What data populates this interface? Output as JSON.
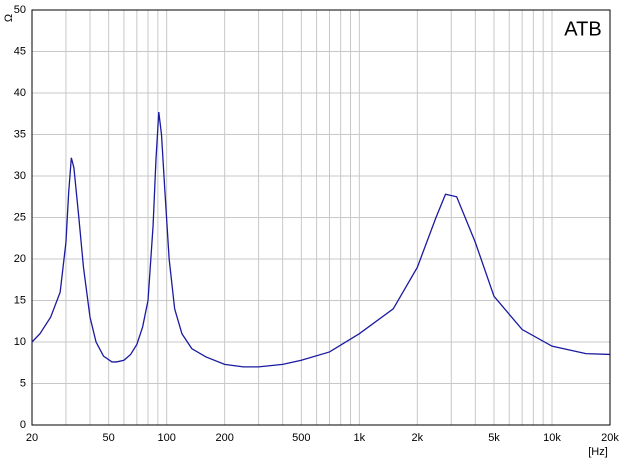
{
  "chart_data": {
    "type": "line",
    "title": "ATB",
    "y_label": "Ω",
    "x_label": "[Hz]",
    "xscale": "log",
    "grid": true,
    "xlim": [
      20,
      20000
    ],
    "ylim": [
      0,
      50
    ],
    "yticks": [
      0,
      5,
      10,
      15,
      20,
      25,
      30,
      35,
      40,
      45,
      50
    ],
    "xticks": [
      20,
      50,
      100,
      200,
      500,
      {
        "value": 1000,
        "label": "1k"
      },
      {
        "value": 2000,
        "label": "2k"
      },
      {
        "value": 5000,
        "label": "5k"
      },
      {
        "value": 10000,
        "label": "10k"
      },
      {
        "value": 20000,
        "label": "20k"
      }
    ],
    "xgrid": [
      30,
      40,
      60,
      70,
      80,
      90,
      300,
      400,
      600,
      700,
      800,
      900,
      3000,
      4000,
      6000,
      7000,
      8000,
      9000
    ],
    "x": [
      20,
      22,
      25,
      28,
      30,
      31,
      32,
      33,
      35,
      37,
      40,
      43,
      47,
      52,
      55,
      60,
      65,
      70,
      75,
      80,
      85,
      88,
      91,
      94,
      98,
      103,
      110,
      120,
      135,
      160,
      200,
      250,
      300,
      400,
      500,
      700,
      1000,
      1500,
      2000,
      2500,
      2800,
      3200,
      4000,
      5000,
      7000,
      10000,
      15000,
      20000
    ],
    "series": [
      {
        "color": "#1a1aa0",
        "values": [
          10,
          11,
          13,
          16,
          22,
          28,
          32.2,
          31,
          25,
          19,
          13,
          10,
          8.3,
          7.6,
          7.6,
          7.8,
          8.5,
          9.7,
          11.8,
          15,
          24,
          32,
          37.7,
          35,
          28,
          20,
          14,
          11,
          9.2,
          8.2,
          7.3,
          7.0,
          7.0,
          7.3,
          7.8,
          8.8,
          11,
          14,
          19,
          25,
          27.8,
          27.5,
          22,
          15.5,
          11.5,
          9.5,
          8.6,
          8.5
        ]
      }
    ]
  }
}
